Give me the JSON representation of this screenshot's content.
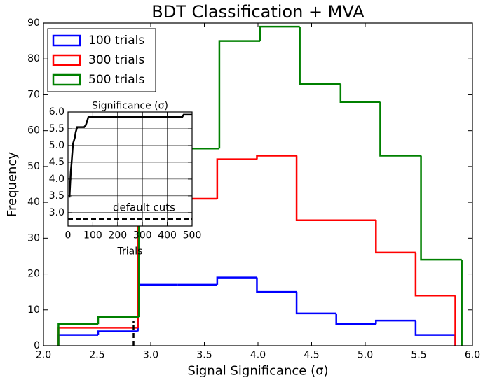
{
  "chart_data": [
    {
      "type": "histogram",
      "title": "BDT Classification + MVA",
      "xlabel": "Signal Significance (σ)",
      "ylabel": "Frequency",
      "xlim": [
        2.0,
        6.0
      ],
      "ylim": [
        0,
        90
      ],
      "xticks": [
        {
          "value": 2.0,
          "label": "2.0"
        },
        {
          "value": 2.5,
          "label": "2.5"
        },
        {
          "value": 3.0,
          "label": "3.0"
        },
        {
          "value": 3.5,
          "label": "3.5"
        },
        {
          "value": 4.0,
          "label": "4.0"
        },
        {
          "value": 4.5,
          "label": "4.5"
        },
        {
          "value": 5.0,
          "label": "5.0"
        },
        {
          "value": 5.5,
          "label": "5.5"
        },
        {
          "value": 6.0,
          "label": "6.0"
        }
      ],
      "yticks": [
        0,
        10,
        20,
        30,
        40,
        50,
        60,
        70,
        80,
        90
      ],
      "grid": false,
      "legend": "upper left",
      "vline": {
        "x": 2.84,
        "y": [
          0,
          7
        ]
      },
      "series": [
        {
          "name": "100 trials",
          "color": "#0000ff",
          "bins": [
            2.14,
            2.51,
            2.88,
            3.25,
            3.62,
            3.99,
            4.36,
            4.73,
            5.1,
            5.47,
            5.84
          ],
          "values": [
            3,
            4,
            17,
            17,
            19,
            15,
            9,
            6,
            7,
            3
          ]
        },
        {
          "name": "300 trials",
          "color": "#ff0000",
          "bins": [
            2.14,
            2.51,
            2.88,
            3.25,
            3.62,
            3.99,
            4.36,
            4.73,
            5.1,
            5.47,
            5.84
          ],
          "values": [
            5,
            5,
            41,
            41,
            52,
            53,
            35,
            35,
            26,
            14
          ]
        },
        {
          "name": "500 trials",
          "color": "#008000",
          "bins": [
            2.14,
            2.51,
            2.89,
            3.27,
            3.64,
            4.02,
            4.39,
            4.77,
            5.14,
            5.52,
            5.9
          ],
          "values": [
            6,
            8,
            55,
            55,
            85,
            89,
            73,
            68,
            53,
            24
          ]
        }
      ]
    },
    {
      "type": "line",
      "title": "Significance (σ)",
      "xlabel": "Trials",
      "xlim": [
        0,
        500
      ],
      "ylim": [
        2.6,
        6.0
      ],
      "xticks": [
        0,
        100,
        200,
        300,
        400,
        500
      ],
      "yticks": [
        {
          "value": 3.0,
          "label": "3.0"
        },
        {
          "value": 3.5,
          "label": "3.5"
        },
        {
          "value": 4.0,
          "label": "4.0"
        },
        {
          "value": 4.5,
          "label": "4.5"
        },
        {
          "value": 5.0,
          "label": "5.0"
        },
        {
          "value": 5.5,
          "label": "5.5"
        },
        {
          "value": 6.0,
          "label": "6.0"
        }
      ],
      "grid": true,
      "hline": {
        "y": 2.81,
        "label": "default cuts"
      },
      "series": [
        {
          "color": "#000000",
          "x": [
            6,
            11,
            14,
            20,
            28,
            31,
            37,
            65,
            71,
            76,
            82,
            460,
            466,
            500
          ],
          "values": [
            3.45,
            4.2,
            4.45,
            5.05,
            5.25,
            5.4,
            5.55,
            5.55,
            5.6,
            5.7,
            5.85,
            5.85,
            5.92,
            5.92
          ]
        }
      ]
    }
  ]
}
